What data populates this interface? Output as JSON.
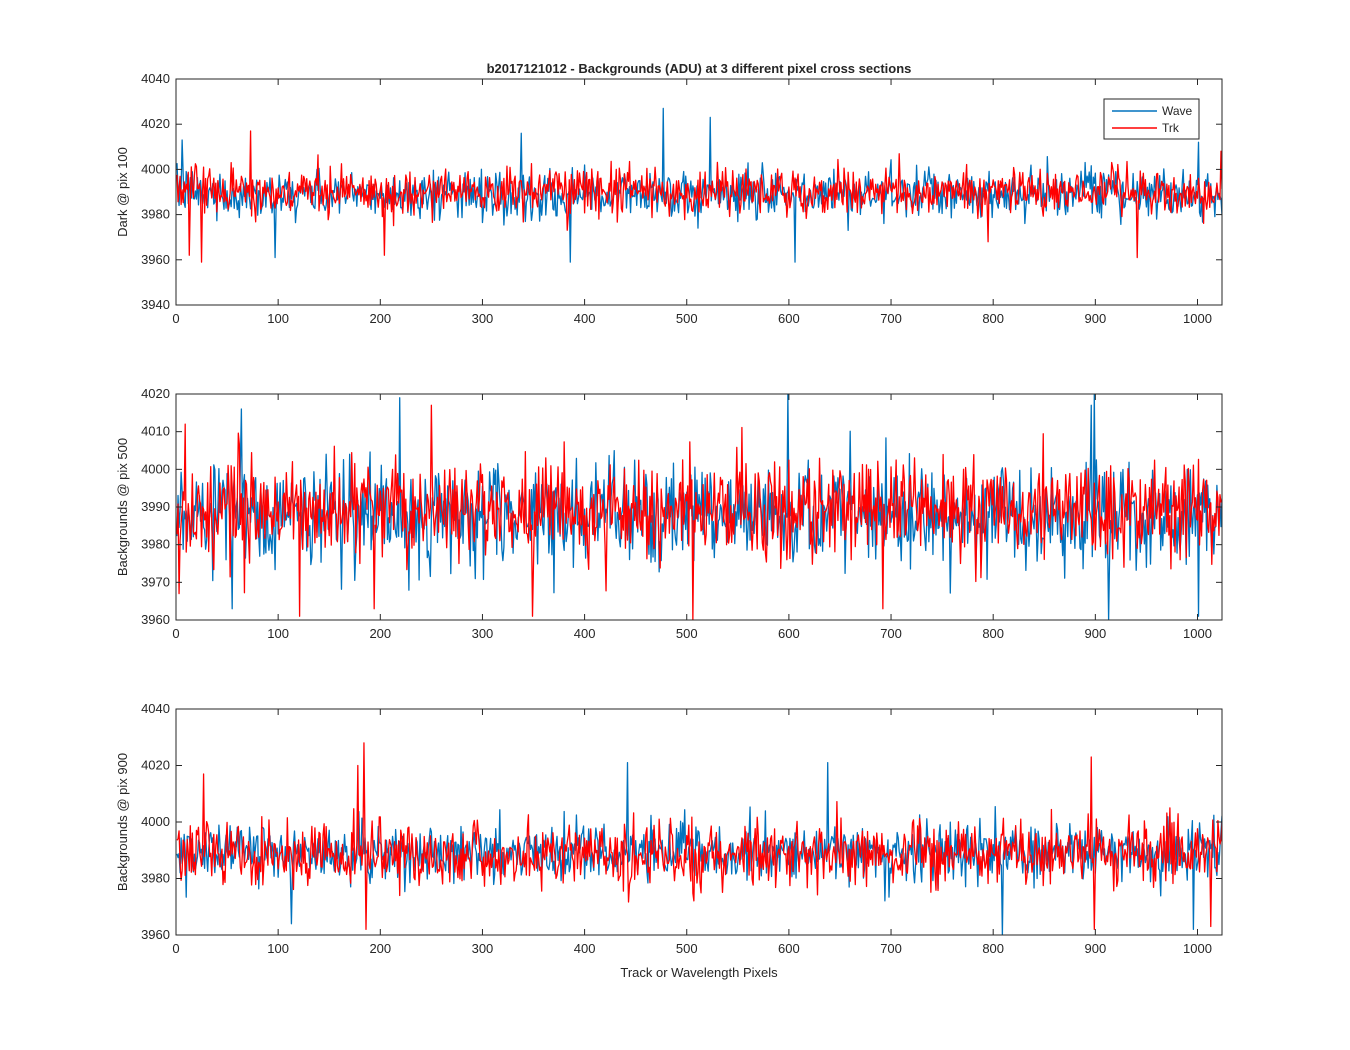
{
  "figure": {
    "title": "b2017121012 - Backgrounds (ADU) at 3 different pixel cross sections",
    "xlabel": "Track or Wavelength Pixels"
  },
  "colors": {
    "wave": "#0072BD",
    "trk": "#FF0000",
    "axis": "#262626",
    "background": "#FFFFFF"
  },
  "legend": {
    "placement": "top-right of first panel",
    "entries": [
      "Wave",
      "Trk"
    ]
  },
  "chart_data": [
    {
      "type": "line",
      "ylabel": "Dark @ pix 100",
      "xlim": [
        0,
        1024
      ],
      "ylim": [
        3940,
        4040
      ],
      "xticks": [
        "0",
        "100",
        "200",
        "300",
        "400",
        "500",
        "600",
        "700",
        "800",
        "900",
        "1000"
      ],
      "yticks": [
        "3940",
        "3960",
        "3980",
        "4000",
        "4020",
        "4040"
      ],
      "grid": false,
      "series": [
        {
          "name": "Wave",
          "color": "#0072BD",
          "mean": 3989,
          "spread": 6.5,
          "points": 1024,
          "peaks": [
            [
              5,
              4013
            ],
            [
              96,
              3961
            ],
            [
              337,
              4016
            ],
            [
              385,
              3959
            ],
            [
              476,
              4027
            ],
            [
              522,
              4023
            ],
            [
              605,
              3959
            ],
            [
              1000,
              4012
            ]
          ]
        },
        {
          "name": "Trk",
          "color": "#FF0000",
          "mean": 3990,
          "spread": 6.5,
          "points": 1024,
          "peaks": [
            [
              12,
              3962
            ],
            [
              24,
              3959
            ],
            [
              72,
              4017
            ],
            [
              203,
              3962
            ],
            [
              794,
              3968
            ],
            [
              940,
              3961
            ],
            [
              1022,
              4008
            ]
          ]
        }
      ]
    },
    {
      "type": "line",
      "ylabel": "Backgrounds @ pix 500",
      "xlim": [
        0,
        1024
      ],
      "ylim": [
        3960,
        4020
      ],
      "xticks": [
        "0",
        "100",
        "200",
        "300",
        "400",
        "500",
        "600",
        "700",
        "800",
        "900",
        "1000"
      ],
      "yticks": [
        "3960",
        "3970",
        "3980",
        "3990",
        "4000",
        "4010",
        "4020"
      ],
      "grid": false,
      "series": [
        {
          "name": "Wave",
          "color": "#0072BD",
          "mean": 3988,
          "spread": 8.5,
          "points": 1024,
          "peaks": [
            [
              54,
              3963
            ],
            [
              63,
              4016
            ],
            [
              218,
              4019
            ],
            [
              598,
              4020
            ],
            [
              895,
              4017
            ],
            [
              898,
              4020
            ],
            [
              912,
              3959
            ],
            [
              1000,
              3961
            ]
          ]
        },
        {
          "name": "Trk",
          "color": "#FF0000",
          "mean": 3989,
          "spread": 8.5,
          "points": 1024,
          "peaks": [
            [
              2,
              3967
            ],
            [
              8,
              4012
            ],
            [
              120,
              3961
            ],
            [
              193,
              3963
            ],
            [
              249,
              4017
            ],
            [
              348,
              3961
            ],
            [
              505,
              3959
            ],
            [
              691,
              3963
            ]
          ]
        }
      ]
    },
    {
      "type": "line",
      "ylabel": "Backgrounds @ pix 900",
      "xlim": [
        0,
        1024
      ],
      "ylim": [
        3960,
        4040
      ],
      "xticks": [
        "0",
        "100",
        "200",
        "300",
        "400",
        "500",
        "600",
        "700",
        "800",
        "900",
        "1000"
      ],
      "yticks": [
        "3960",
        "3980",
        "4000",
        "4020",
        "4040"
      ],
      "grid": false,
      "series": [
        {
          "name": "Wave",
          "color": "#0072BD",
          "mean": 3989,
          "spread": 6.5,
          "points": 1024,
          "peaks": [
            [
              112,
              3964
            ],
            [
              441,
              4021
            ],
            [
              637,
              4021
            ],
            [
              808,
              3960
            ],
            [
              995,
              3962
            ]
          ]
        },
        {
          "name": "Trk",
          "color": "#FF0000",
          "mean": 3989,
          "spread": 7,
          "points": 1024,
          "peaks": [
            [
              26,
              4017
            ],
            [
              177,
              4020
            ],
            [
              183,
              4028
            ],
            [
              185,
              3962
            ],
            [
              895,
              4023
            ],
            [
              898,
              3962
            ],
            [
              1012,
              3963
            ]
          ]
        }
      ]
    }
  ]
}
